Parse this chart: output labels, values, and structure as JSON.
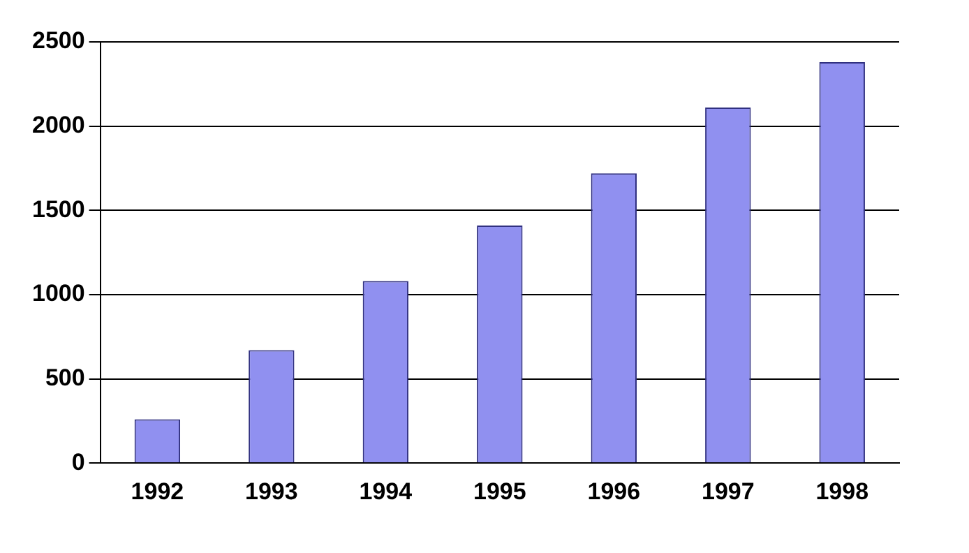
{
  "chart_data": {
    "type": "bar",
    "categories": [
      "1992",
      "1993",
      "1994",
      "1995",
      "1996",
      "1997",
      "1998"
    ],
    "values": [
      260,
      670,
      1080,
      1410,
      1720,
      2110,
      2380
    ],
    "color": "#9090f0",
    "ylim": [
      0,
      2500
    ],
    "yticks": [
      0,
      500,
      1000,
      1500,
      2000,
      2500
    ],
    "grid": "y",
    "legend": false
  }
}
